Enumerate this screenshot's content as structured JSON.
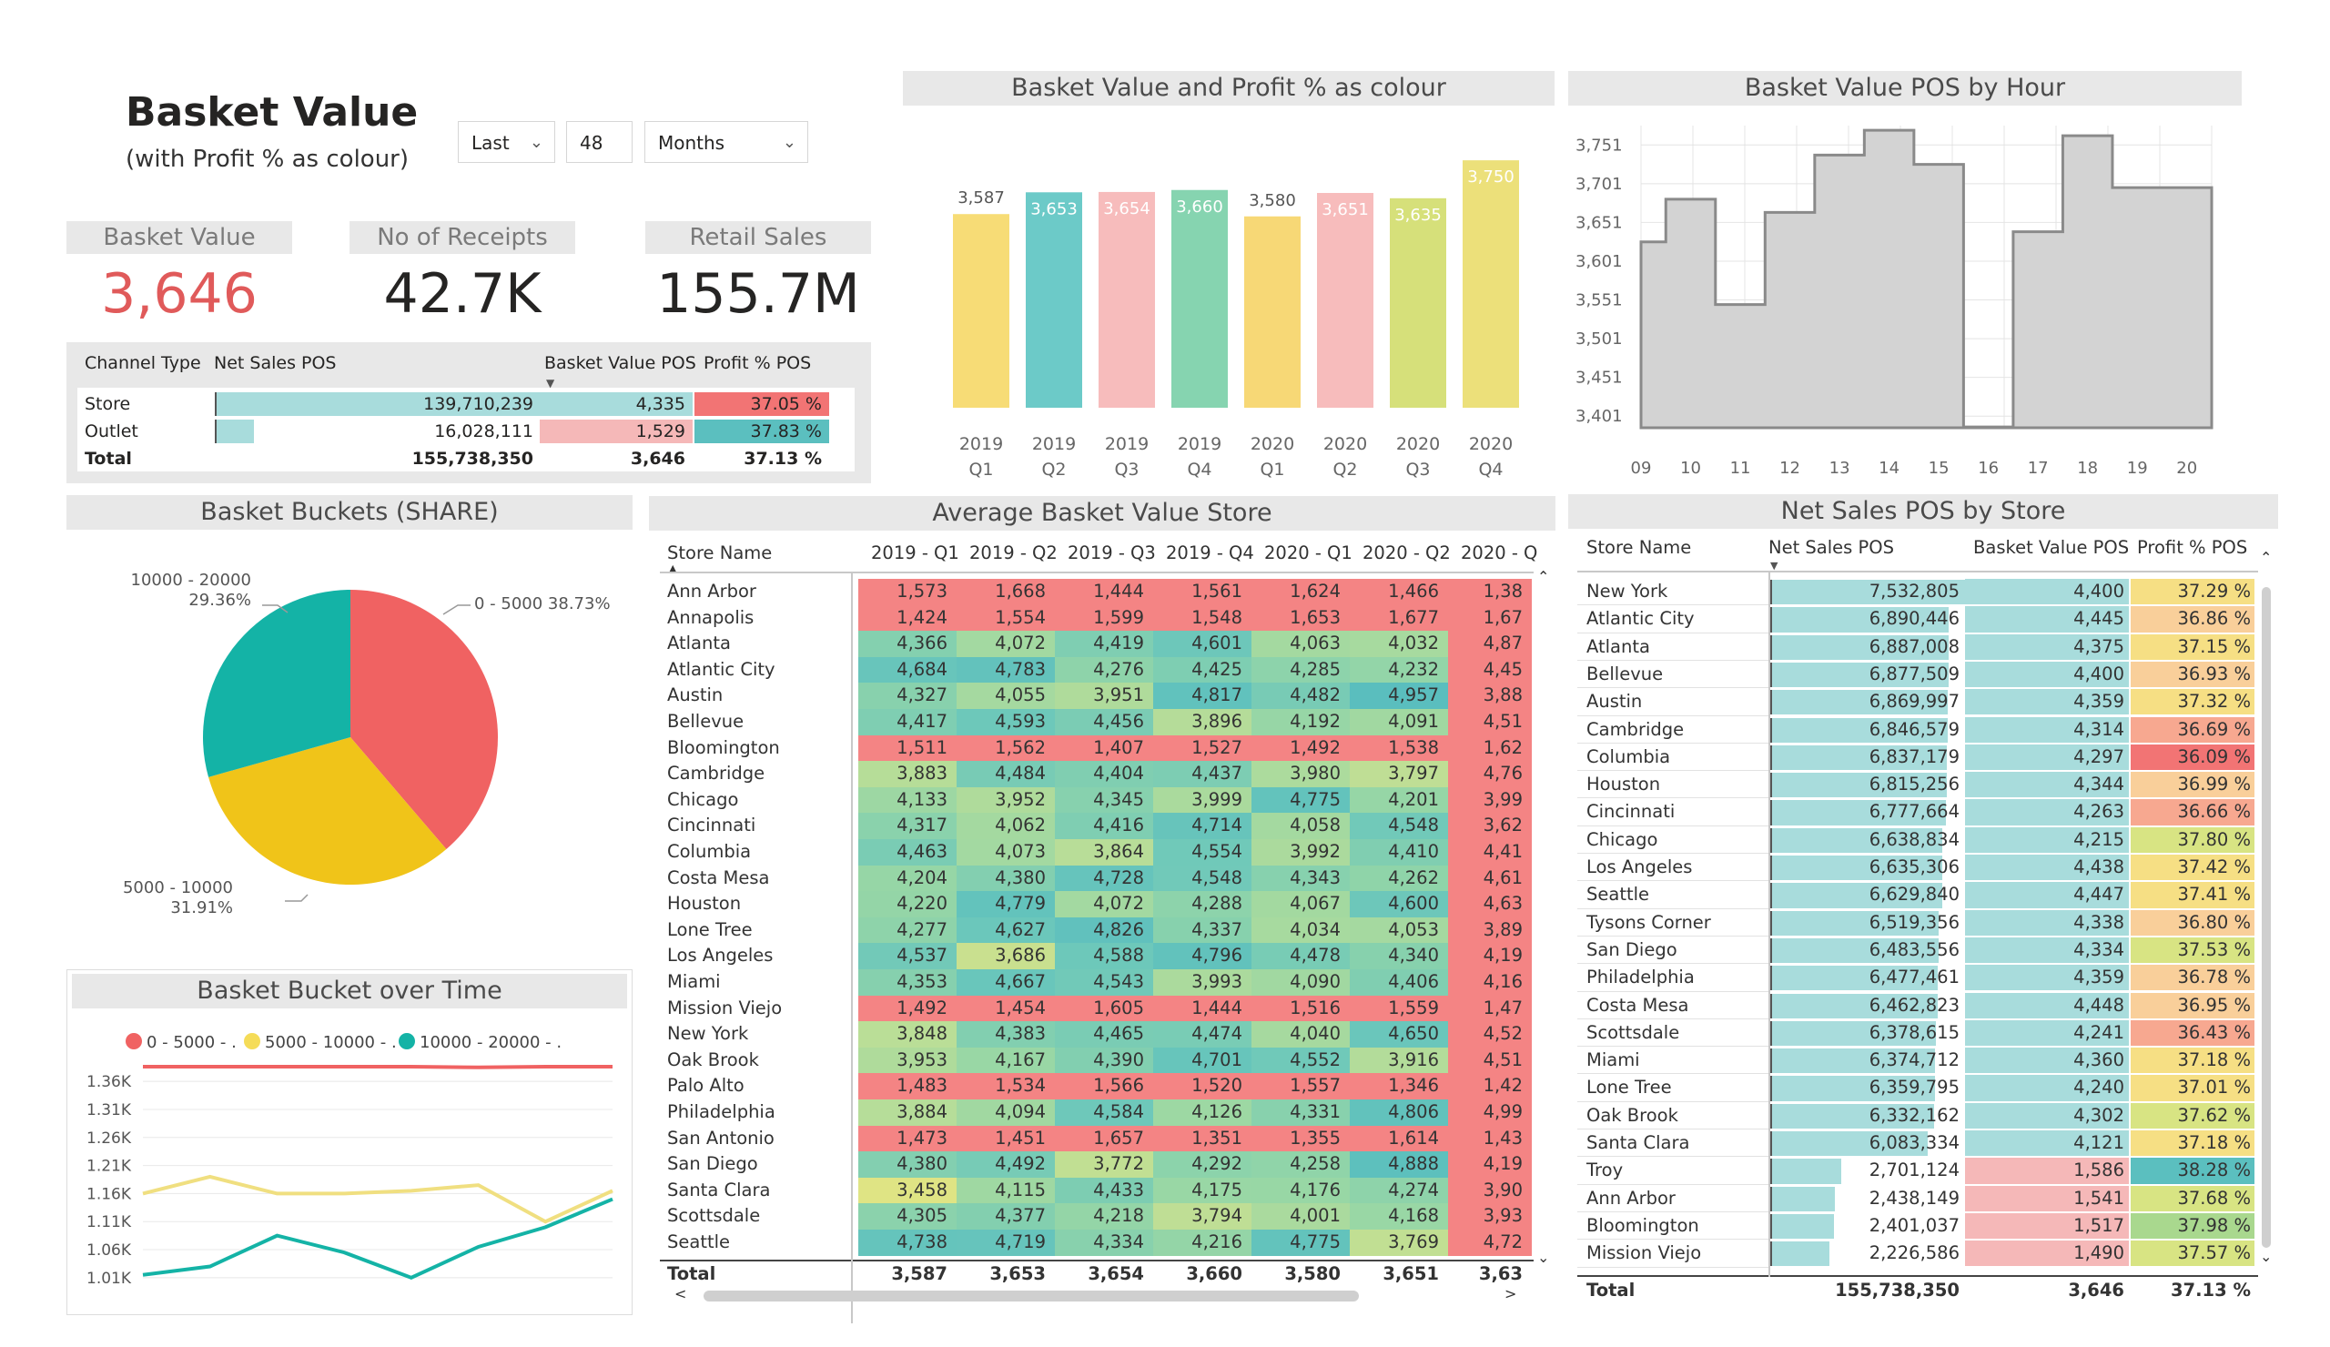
{
  "header": {
    "title": "Basket Value",
    "subtitle": "(with Profit % as colour)"
  },
  "filters": {
    "period": "Last",
    "count": "48",
    "unit": "Months"
  },
  "kpis": [
    {
      "label": "Basket Value",
      "value": "3,646",
      "color": "#e05a5a"
    },
    {
      "label": "No of Receipts",
      "value": "42.7K",
      "color": "#252423"
    },
    {
      "label": "Retail Sales",
      "value": "155.7M",
      "color": "#252423"
    }
  ],
  "channel_table": {
    "headers": [
      "Channel Type",
      "Net Sales POS",
      "Basket Value POS",
      "Profit % POS"
    ],
    "rows": [
      {
        "name": "Store",
        "net": "139,710,239",
        "net_share": 1.0,
        "basket": "4,335",
        "profit": "37.05 %",
        "basket_color": "#a8dcdc",
        "profit_color": "#f27474"
      },
      {
        "name": "Outlet",
        "net": "16,028,111",
        "net_share": 0.115,
        "basket": "1,529",
        "profit": "37.83 %",
        "basket_color": "#f5b8b8",
        "profit_color": "#5bbfbf"
      }
    ],
    "total": {
      "name": "Total",
      "net": "155,738,350",
      "basket": "3,646",
      "profit": "37.13 %"
    }
  },
  "colors": {
    "red": "#f06262",
    "yellow": "#f0c419",
    "teal": "#14b3a6",
    "bar_fill": "#d3d3d3",
    "bar_line": "#8a8a8a"
  },
  "chart_data": [
    {
      "type": "bar",
      "title": "Basket Value and Profit % as colour",
      "categories": [
        "2019 Q1",
        "2019 Q2",
        "2019 Q3",
        "2019 Q4",
        "2020 Q1",
        "2020 Q2",
        "2020 Q3",
        "2020 Q4"
      ],
      "values": [
        3587,
        3653,
        3654,
        3660,
        3580,
        3651,
        3635,
        3750
      ],
      "labels": [
        "3,587",
        "3,653",
        "3,654",
        "3,660",
        "3,580",
        "3,651",
        "3,635",
        "3,750"
      ],
      "colors": [
        "#f7dc76",
        "#6ccac8",
        "#f7bcbc",
        "#86d4b0",
        "#f7d876",
        "#f7bcbc",
        "#d6e07a",
        "#ece07a"
      ],
      "ylim": [
        3000,
        3800
      ]
    },
    {
      "type": "bar",
      "title": "Basket Value POS by Hour",
      "categories": [
        "09",
        "10",
        "11",
        "12",
        "13",
        "14",
        "15",
        "16",
        "17",
        "18",
        "19",
        "20"
      ],
      "values": [
        3626,
        3681,
        3545,
        3664,
        3738,
        3770,
        3726,
        3387,
        3639,
        3763,
        3696,
        3696
      ],
      "y_ticks": [
        "3,751",
        "3,701",
        "3,651",
        "3,601",
        "3,551",
        "3,501",
        "3,451",
        "3,401"
      ],
      "ylim": [
        3386,
        3776
      ]
    },
    {
      "type": "pie",
      "title": "Basket Buckets (SHARE)",
      "slices": [
        {
          "label": "0 - 5000",
          "pct": "38.73%",
          "value": 38.73
        },
        {
          "label": "5000 - 10000",
          "pct": "31.91%",
          "value": 31.91
        },
        {
          "label": "10000 - 20000",
          "pct": "29.36%",
          "value": 29.36
        }
      ]
    },
    {
      "type": "line",
      "title": "Basket Bucket over Time",
      "legend": [
        "0 - 5000 - .",
        "5000 - 10000 - .",
        "10000 - 20000 - ."
      ],
      "y_ticks": [
        "1.36K",
        "1.31K",
        "1.26K",
        "1.21K",
        "1.16K",
        "1.11K",
        "1.06K",
        "1.01K"
      ],
      "ylim": [
        1000,
        1370
      ],
      "series": [
        {
          "name": "0 - 5000 - .",
          "values": [
            1400,
            1392,
            1390,
            1398,
            1390,
            1385,
            1402,
            1395
          ],
          "color": "#f06262"
        },
        {
          "name": "5000 - 10000 - .",
          "values": [
            1160,
            1190,
            1160,
            1160,
            1165,
            1175,
            1110,
            1165
          ],
          "color": "#f0df80"
        },
        {
          "name": "10000 - 20000 - .",
          "values": [
            1015,
            1030,
            1085,
            1055,
            1010,
            1065,
            1100,
            1150
          ],
          "color": "#14b3a6"
        }
      ]
    }
  ],
  "matrix": {
    "title": "Average Basket Value Store",
    "row_header": "Store Name",
    "columns": [
      "2019 - Q1",
      "2019 - Q2",
      "2019 - Q3",
      "2019 - Q4",
      "2020 - Q1",
      "2020 - Q2",
      "2020 - Q"
    ],
    "rows": [
      {
        "name": "Ann Arbor",
        "v": [
          "1,573",
          "1,668",
          "1,444",
          "1,561",
          "1,624",
          "1,466",
          "1,38"
        ]
      },
      {
        "name": "Annapolis",
        "v": [
          "1,424",
          "1,554",
          "1,599",
          "1,548",
          "1,653",
          "1,677",
          "1,67"
        ]
      },
      {
        "name": "Atlanta",
        "v": [
          "4,366",
          "4,072",
          "4,419",
          "4,601",
          "4,063",
          "4,032",
          "4,87"
        ]
      },
      {
        "name": "Atlantic City",
        "v": [
          "4,684",
          "4,783",
          "4,276",
          "4,425",
          "4,285",
          "4,232",
          "4,45"
        ]
      },
      {
        "name": "Austin",
        "v": [
          "4,327",
          "4,055",
          "3,951",
          "4,817",
          "4,482",
          "4,957",
          "3,88"
        ]
      },
      {
        "name": "Bellevue",
        "v": [
          "4,417",
          "4,593",
          "4,456",
          "3,896",
          "4,192",
          "4,091",
          "4,51"
        ]
      },
      {
        "name": "Bloomington",
        "v": [
          "1,511",
          "1,562",
          "1,407",
          "1,527",
          "1,492",
          "1,538",
          "1,62"
        ]
      },
      {
        "name": "Cambridge",
        "v": [
          "3,883",
          "4,484",
          "4,404",
          "4,437",
          "3,980",
          "3,797",
          "4,76"
        ]
      },
      {
        "name": "Chicago",
        "v": [
          "4,133",
          "3,952",
          "4,345",
          "3,999",
          "4,775",
          "4,201",
          "3,99"
        ]
      },
      {
        "name": "Cincinnati",
        "v": [
          "4,317",
          "4,062",
          "4,416",
          "4,714",
          "4,058",
          "4,548",
          "3,62"
        ]
      },
      {
        "name": "Columbia",
        "v": [
          "4,463",
          "4,073",
          "3,864",
          "4,554",
          "3,992",
          "4,410",
          "4,41"
        ]
      },
      {
        "name": "Costa Mesa",
        "v": [
          "4,204",
          "4,380",
          "4,728",
          "4,548",
          "4,343",
          "4,262",
          "4,61"
        ]
      },
      {
        "name": "Houston",
        "v": [
          "4,220",
          "4,779",
          "4,072",
          "4,288",
          "4,067",
          "4,600",
          "4,63"
        ]
      },
      {
        "name": "Lone Tree",
        "v": [
          "4,277",
          "4,627",
          "4,826",
          "4,337",
          "4,034",
          "4,053",
          "3,89"
        ]
      },
      {
        "name": "Los Angeles",
        "v": [
          "4,537",
          "3,686",
          "4,588",
          "4,796",
          "4,478",
          "4,340",
          "4,19"
        ]
      },
      {
        "name": "Miami",
        "v": [
          "4,353",
          "4,667",
          "4,543",
          "3,993",
          "4,090",
          "4,406",
          "4,16"
        ]
      },
      {
        "name": "Mission Viejo",
        "v": [
          "1,492",
          "1,454",
          "1,605",
          "1,444",
          "1,516",
          "1,559",
          "1,47"
        ]
      },
      {
        "name": "New York",
        "v": [
          "3,848",
          "4,383",
          "4,465",
          "4,474",
          "4,040",
          "4,650",
          "4,52"
        ]
      },
      {
        "name": "Oak Brook",
        "v": [
          "3,953",
          "4,167",
          "4,390",
          "4,701",
          "4,552",
          "3,916",
          "4,51"
        ]
      },
      {
        "name": "Palo Alto",
        "v": [
          "1,483",
          "1,534",
          "1,566",
          "1,520",
          "1,557",
          "1,346",
          "1,42"
        ]
      },
      {
        "name": "Philadelphia",
        "v": [
          "3,884",
          "4,094",
          "4,584",
          "4,126",
          "4,331",
          "4,806",
          "4,99"
        ]
      },
      {
        "name": "San Antonio",
        "v": [
          "1,473",
          "1,451",
          "1,657",
          "1,351",
          "1,355",
          "1,614",
          "1,43"
        ]
      },
      {
        "name": "San Diego",
        "v": [
          "4,380",
          "4,492",
          "3,772",
          "4,292",
          "4,258",
          "4,888",
          "4,19"
        ]
      },
      {
        "name": "Santa Clara",
        "v": [
          "3,458",
          "4,115",
          "4,433",
          "4,175",
          "4,176",
          "4,274",
          "3,90"
        ]
      },
      {
        "name": "Scottsdale",
        "v": [
          "4,305",
          "4,377",
          "4,218",
          "3,794",
          "4,001",
          "4,168",
          "3,93"
        ]
      },
      {
        "name": "Seattle",
        "v": [
          "4,738",
          "4,719",
          "4,334",
          "4,216",
          "4,775",
          "3,769",
          "4,72"
        ]
      }
    ],
    "total": {
      "name": "Total",
      "v": [
        "3,587",
        "3,653",
        "3,654",
        "3,660",
        "3,580",
        "3,651",
        "3,63"
      ]
    }
  },
  "net_sales": {
    "title": "Net Sales POS by Store",
    "headers": [
      "Store Name",
      "Net Sales POS",
      "Basket Value POS",
      "Profit % POS"
    ],
    "rows": [
      {
        "name": "New York",
        "net": "7,532,805",
        "share": 1.0,
        "basket": "4,400",
        "profit": "37.29 %"
      },
      {
        "name": "Atlantic City",
        "net": "6,890,446",
        "share": 0.915,
        "basket": "4,445",
        "profit": "36.86 %"
      },
      {
        "name": "Atlanta",
        "net": "6,887,008",
        "share": 0.914,
        "basket": "4,375",
        "profit": "37.15 %"
      },
      {
        "name": "Bellevue",
        "net": "6,877,509",
        "share": 0.913,
        "basket": "4,400",
        "profit": "36.93 %"
      },
      {
        "name": "Austin",
        "net": "6,869,997",
        "share": 0.912,
        "basket": "4,359",
        "profit": "37.32 %"
      },
      {
        "name": "Cambridge",
        "net": "6,846,579",
        "share": 0.909,
        "basket": "4,314",
        "profit": "36.69 %"
      },
      {
        "name": "Columbia",
        "net": "6,837,179",
        "share": 0.908,
        "basket": "4,297",
        "profit": "36.09 %"
      },
      {
        "name": "Houston",
        "net": "6,815,256",
        "share": 0.905,
        "basket": "4,344",
        "profit": "36.99 %"
      },
      {
        "name": "Cincinnati",
        "net": "6,777,664",
        "share": 0.9,
        "basket": "4,263",
        "profit": "36.66 %"
      },
      {
        "name": "Chicago",
        "net": "6,638,834",
        "share": 0.881,
        "basket": "4,215",
        "profit": "37.80 %"
      },
      {
        "name": "Los Angeles",
        "net": "6,635,306",
        "share": 0.881,
        "basket": "4,438",
        "profit": "37.42 %"
      },
      {
        "name": "Seattle",
        "net": "6,629,840",
        "share": 0.88,
        "basket": "4,447",
        "profit": "37.41 %"
      },
      {
        "name": "Tysons Corner",
        "net": "6,519,356",
        "share": 0.865,
        "basket": "4,338",
        "profit": "36.80 %"
      },
      {
        "name": "San Diego",
        "net": "6,483,556",
        "share": 0.861,
        "basket": "4,334",
        "profit": "37.53 %"
      },
      {
        "name": "Philadelphia",
        "net": "6,477,461",
        "share": 0.86,
        "basket": "4,359",
        "profit": "36.78 %"
      },
      {
        "name": "Costa Mesa",
        "net": "6,462,823",
        "share": 0.858,
        "basket": "4,448",
        "profit": "36.95 %"
      },
      {
        "name": "Scottsdale",
        "net": "6,378,615",
        "share": 0.847,
        "basket": "4,241",
        "profit": "36.43 %"
      },
      {
        "name": "Miami",
        "net": "6,374,712",
        "share": 0.846,
        "basket": "4,360",
        "profit": "37.18 %"
      },
      {
        "name": "Lone Tree",
        "net": "6,359,795",
        "share": 0.844,
        "basket": "4,240",
        "profit": "37.01 %"
      },
      {
        "name": "Oak Brook",
        "net": "6,332,162",
        "share": 0.841,
        "basket": "4,302",
        "profit": "37.62 %"
      },
      {
        "name": "Santa Clara",
        "net": "6,083,334",
        "share": 0.808,
        "basket": "4,121",
        "profit": "37.18 %"
      },
      {
        "name": "Troy",
        "net": "2,701,124",
        "share": 0.359,
        "basket": "1,586",
        "profit": "38.28 %"
      },
      {
        "name": "Ann Arbor",
        "net": "2,438,149",
        "share": 0.324,
        "basket": "1,541",
        "profit": "37.68 %"
      },
      {
        "name": "Bloomington",
        "net": "2,401,037",
        "share": 0.319,
        "basket": "1,517",
        "profit": "37.98 %"
      },
      {
        "name": "Mission Viejo",
        "net": "2,226,586",
        "share": 0.296,
        "basket": "1,490",
        "profit": "37.57 %"
      }
    ],
    "total": {
      "name": "Total",
      "net": "155,738,350",
      "basket": "3,646",
      "profit": "37.13 %"
    }
  }
}
